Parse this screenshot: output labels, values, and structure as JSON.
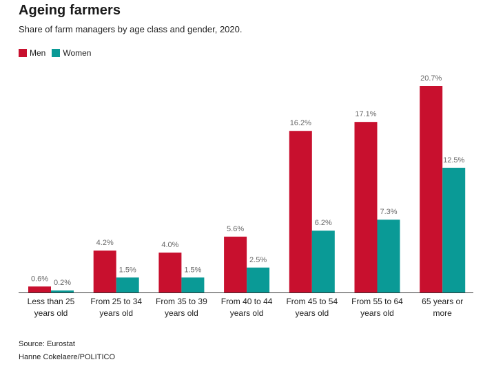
{
  "title": "Ageing farmers",
  "subtitle": "Share of farm managers by age class and gender, 2020.",
  "source": "Source: Eurostat",
  "credit": "Hanne Cokelaere/POLITICO",
  "colors": {
    "men": "#c8102e",
    "women": "#0a9a96",
    "axis": "#333333"
  },
  "chart_data": {
    "type": "bar",
    "title": "Ageing farmers",
    "xlabel": "",
    "ylabel": "",
    "ylim": [
      0,
      22
    ],
    "grid": false,
    "legend_position": "top-left",
    "categories": [
      [
        "Less than 25",
        "years old"
      ],
      [
        "From 25 to 34",
        "years old"
      ],
      [
        "From 35 to 39",
        "years old"
      ],
      [
        "From 40 to 44",
        "years old"
      ],
      [
        "From 45 to 54",
        "years old"
      ],
      [
        "From 55 to 64",
        "years old"
      ],
      [
        "65 years or",
        "more"
      ]
    ],
    "series": [
      {
        "name": "Men",
        "color": "#c8102e",
        "values": [
          0.6,
          4.2,
          4.0,
          5.6,
          16.2,
          17.1,
          20.7
        ],
        "labels": [
          "0.6%",
          "4.2%",
          "4.0%",
          "5.6%",
          "16.2%",
          "17.1%",
          "20.7%"
        ]
      },
      {
        "name": "Women",
        "color": "#0a9a96",
        "values": [
          0.2,
          1.5,
          1.5,
          2.5,
          6.2,
          7.3,
          12.5
        ],
        "labels": [
          "0.2%",
          "1.5%",
          "1.5%",
          "2.5%",
          "6.2%",
          "7.3%",
          "12.5%"
        ]
      }
    ]
  }
}
